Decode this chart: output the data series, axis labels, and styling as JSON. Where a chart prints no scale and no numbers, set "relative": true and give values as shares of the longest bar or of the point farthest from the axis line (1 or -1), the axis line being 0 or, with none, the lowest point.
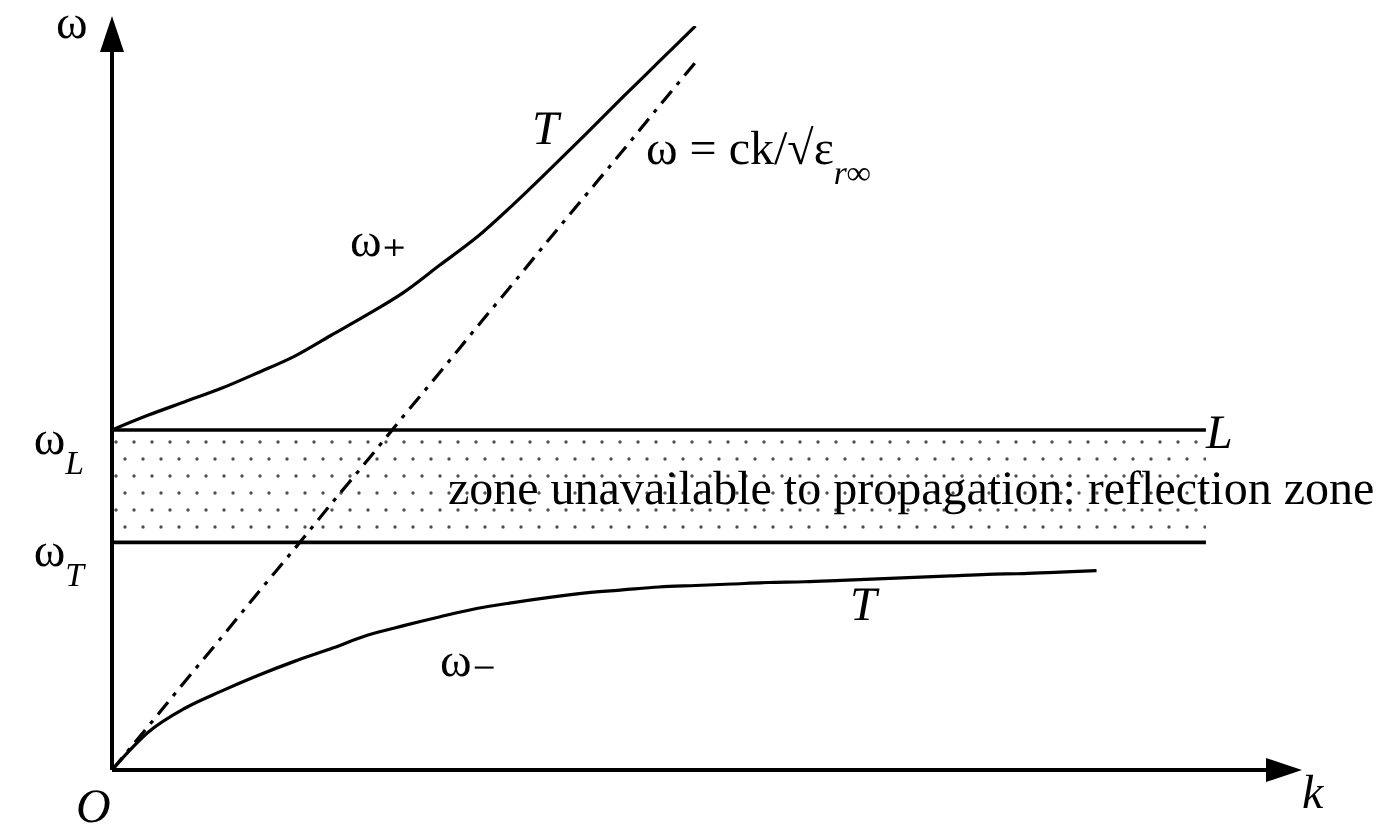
{
  "chart_data": {
    "type": "line",
    "relative": true,
    "xlabel": "k",
    "ylabel": "ω",
    "categories": [
      null,
      null,
      null,
      null,
      null,
      null,
      null,
      null,
      null,
      null,
      null,
      null,
      null,
      null,
      null,
      null,
      null,
      null,
      null,
      null,
      null,
      null,
      null,
      null,
      null,
      null,
      null,
      null,
      null,
      null,
      null
    ],
    "series": [
      {
        "name": "ω₊",
        "color": "#000000",
        "values": [
          0.457,
          0.477,
          0.495,
          0.513,
          0.534,
          0.556,
          0.584,
          0.612,
          0.642,
          0.679,
          0.716,
          0.76,
          0.807,
          0.855,
          0.904,
          0.952,
          1,
          null,
          null,
          null,
          null,
          null,
          null,
          null,
          null,
          null,
          null,
          null,
          null,
          null,
          null
        ]
      },
      {
        "name": "ω₋",
        "color": "#000000",
        "values": [
          0,
          0.051,
          0.083,
          0.106,
          0.127,
          0.146,
          0.163,
          0.181,
          0.194,
          0.206,
          0.217,
          0.225,
          0.232,
          0.238,
          0.242,
          0.246,
          0.248,
          0.25,
          0.252,
          0.253,
          0.255,
          0.257,
          0.259,
          0.261,
          0.263,
          0.264,
          0.266,
          0.268,
          null,
          null,
          null
        ]
      },
      {
        "name": "ω = ck/√ε$_{r∞}$",
        "color": "#000000",
        "line_style": "dashdot",
        "values": [
          0,
          0.059,
          0.119,
          0.178,
          0.238,
          0.297,
          0.357,
          0.416,
          0.476,
          0.535,
          0.595,
          0.654,
          0.714,
          0.773,
          0.832,
          0.892,
          0.951,
          null,
          null,
          null,
          null,
          null,
          null,
          null,
          null,
          null,
          null,
          null,
          null,
          null,
          null
        ]
      }
    ],
    "ref_lines": [
      {
        "axis": "y",
        "value": 0.457,
        "label": "ω$_{L}$",
        "color": "#000000"
      },
      {
        "axis": "y",
        "value": 0.306,
        "label": "ω$_{T}$",
        "color": "#000000"
      }
    ],
    "bands": [
      {
        "axis": "y",
        "from": 0.306,
        "to": 0.457,
        "label": "zone unavailable to propagation: reflection zone",
        "color": "#505050"
      }
    ],
    "annotations": [
      "L",
      "O",
      "T",
      "T"
    ]
  }
}
